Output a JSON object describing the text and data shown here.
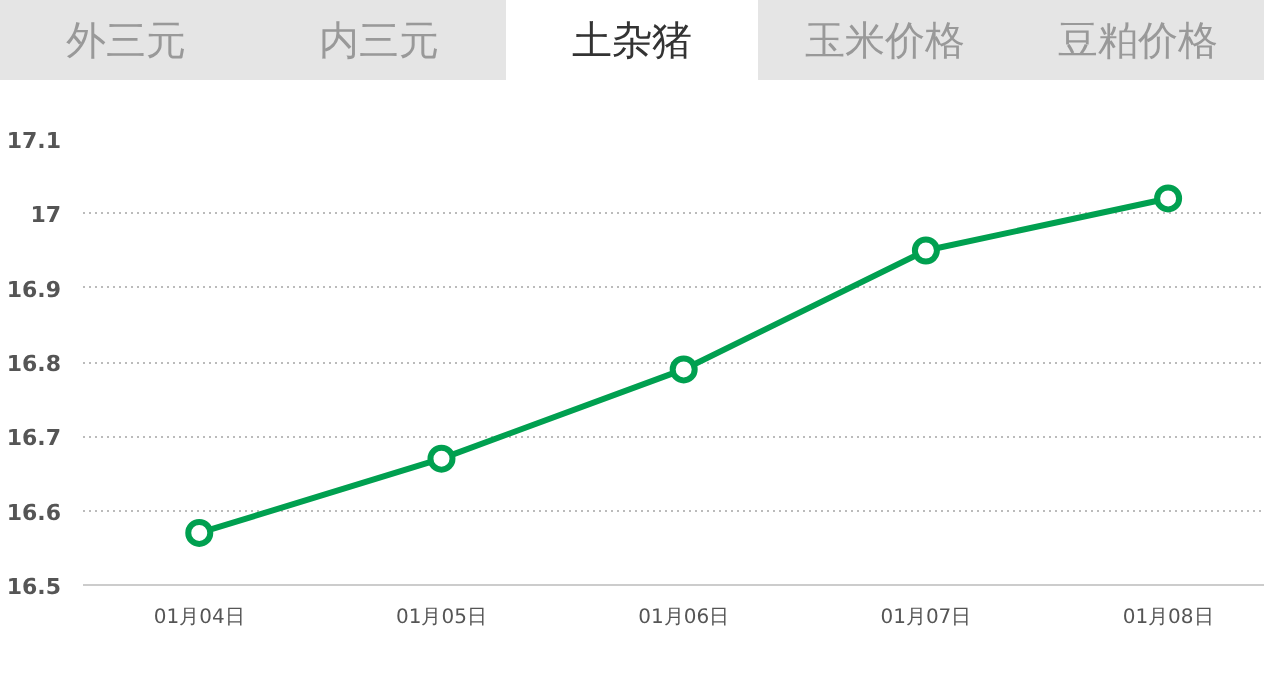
{
  "chart_data": {
    "type": "line",
    "categories": [
      "01月04日",
      "01月05日",
      "01月06日",
      "01月07日",
      "01月08日"
    ],
    "series": [
      {
        "color": "#00a050",
        "values": [
          16.57,
          16.67,
          16.79,
          16.95,
          17.02
        ]
      }
    ],
    "ylim": [
      16.5,
      17.1
    ],
    "yticks": [
      16.5,
      16.6,
      16.7,
      16.8,
      16.9,
      {
        "value": 17,
        "label": "17"
      },
      17.1
    ],
    "grid": "y",
    "marker": "circle",
    "line_style": "solid",
    "annotations": [
      "外三元",
      "内三元",
      "土杂猪",
      "玉米价格",
      "豆粕价格"
    ]
  }
}
